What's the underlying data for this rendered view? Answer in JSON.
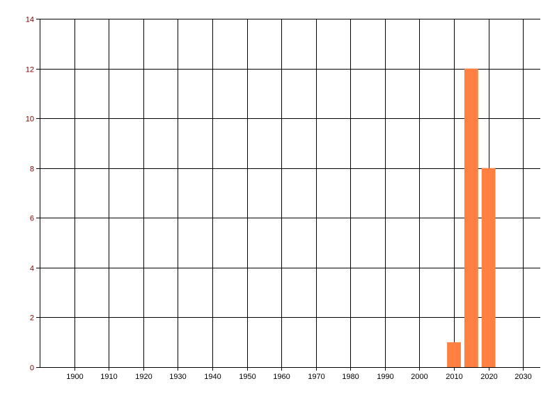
{
  "chart_data": {
    "type": "bar",
    "title": "",
    "xlabel": "",
    "ylabel": "",
    "x": [
      2010,
      2015,
      2020
    ],
    "values": [
      1,
      12,
      8
    ],
    "xlim": [
      1890,
      2035
    ],
    "ylim": [
      0,
      14
    ],
    "xticks": [
      1900,
      1910,
      1920,
      1930,
      1940,
      1950,
      1960,
      1970,
      1980,
      1990,
      2000,
      2010,
      2020,
      2030
    ],
    "yticks": [
      0,
      2,
      4,
      6,
      8,
      10,
      12,
      14
    ],
    "bar_width_years": 4,
    "grid": true,
    "legend": "none",
    "colors": {
      "bar": "#FF8040",
      "grid": "#000000",
      "ytick_label": "#800000",
      "xtick_label": "#000000"
    }
  }
}
